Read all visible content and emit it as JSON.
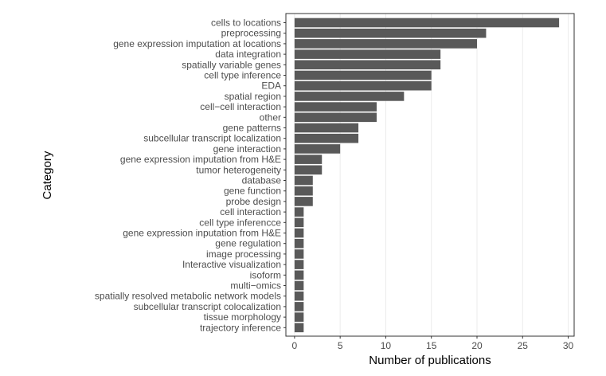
{
  "chart_data": {
    "type": "bar",
    "orientation": "horizontal",
    "xlabel": "Number of publications",
    "ylabel": "Category",
    "xlim": [
      0,
      30
    ],
    "x_ticks": [
      0,
      5,
      10,
      15,
      20,
      25,
      30
    ],
    "grid": "vertical major gridlines",
    "legend": "none",
    "colors": {
      "bar": "#595959",
      "grid": "#ebebeb",
      "frame": "#333333"
    },
    "categories": [
      "cells to locations",
      "preprocessing",
      "gene expression imputation at locations",
      "data integration",
      "spatially variable genes",
      "cell type inference",
      "EDA",
      "spatial region",
      "cell−cell interaction",
      "other",
      "gene patterns",
      "subcellular transcript localization",
      "gene interaction",
      "gene expression imputation from H&E",
      "tumor heterogeneity",
      "database",
      "gene function",
      "probe design",
      "cell interaction",
      "cell type inferencce",
      "gene expression inputation from H&E",
      "gene regulation",
      "image processing",
      "Interactive visualization",
      "isoform",
      "multi−omics",
      "spatially resolved metabolic network models",
      "subcellular transcript colocalization",
      "tissue morphology",
      "trajectory inference"
    ],
    "values": [
      29,
      21,
      20,
      16,
      16,
      15,
      15,
      12,
      9,
      9,
      7,
      7,
      5,
      3,
      3,
      2,
      2,
      2,
      1,
      1,
      1,
      1,
      1,
      1,
      1,
      1,
      1,
      1,
      1,
      1
    ]
  }
}
